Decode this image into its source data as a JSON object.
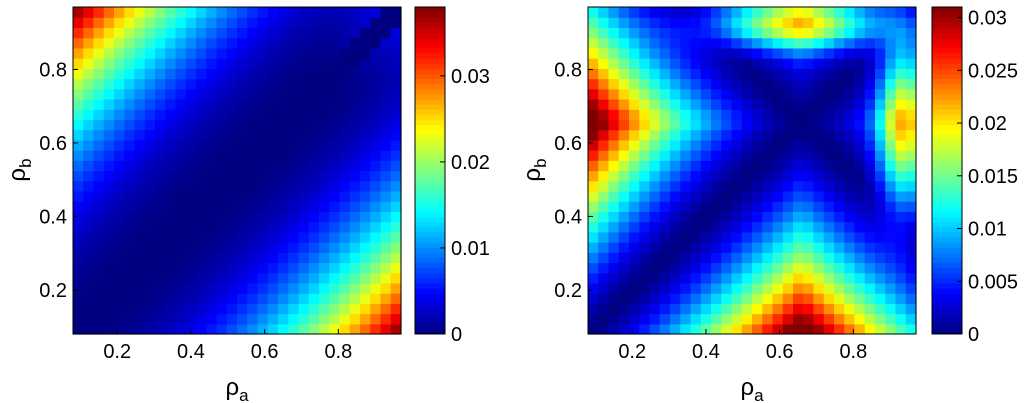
{
  "chart_data": [
    {
      "type": "heatmap",
      "title": "",
      "xlabel": "ρ",
      "xlabel_sub": "a",
      "ylabel": "ρ",
      "ylabel_sub": "b",
      "grid": false,
      "colormap": "jet",
      "xlim": [
        0.08,
        0.97
      ],
      "ylim": [
        0.08,
        0.97
      ],
      "xticks": [
        0.2,
        0.4,
        0.6,
        0.8
      ],
      "xtick_labels": [
        "0.2",
        "0.4",
        "0.6",
        "0.8"
      ],
      "yticks": [
        0.2,
        0.4,
        0.6,
        0.8
      ],
      "ytick_labels": [
        "0.2",
        "0.4",
        "0.6",
        "0.8"
      ],
      "colorbar": {
        "range": [
          0,
          0.038
        ],
        "ticks": [
          0,
          0.01,
          0.02,
          0.03
        ],
        "tick_labels": [
          "0",
          "0.01",
          "0.02",
          "0.03"
        ]
      },
      "grid_size": 32,
      "description_of_values": "Value is zero along diagonal ρa=ρb, maximum ~0.038 at (0.1,0.95) and (0.95,0.1)",
      "peaks": [
        {
          "x": 0.1,
          "y": 0.95,
          "value": 0.038
        },
        {
          "x": 0.95,
          "y": 0.1,
          "value": 0.038
        }
      ]
    },
    {
      "type": "heatmap",
      "title": "",
      "xlabel": "ρ",
      "xlabel_sub": "a",
      "ylabel": "ρ",
      "ylabel_sub": "b",
      "grid": false,
      "colormap": "jet",
      "xlim": [
        0.08,
        0.97
      ],
      "ylim": [
        0.08,
        0.97
      ],
      "xticks": [
        0.2,
        0.4,
        0.6,
        0.8
      ],
      "xtick_labels": [
        "0.2",
        "0.4",
        "0.6",
        "0.8"
      ],
      "yticks": [
        0.2,
        0.4,
        0.6,
        0.8
      ],
      "ytick_labels": [
        "0.2",
        "0.4",
        "0.6",
        "0.8"
      ],
      "colorbar": {
        "range": [
          0,
          0.031
        ],
        "ticks": [
          0,
          0.005,
          0.01,
          0.015,
          0.02,
          0.025,
          0.03
        ],
        "tick_labels": [
          "0",
          "0.005",
          "0.01",
          "0.015",
          "0.02",
          "0.025",
          "0.03"
        ]
      },
      "grid_size": 32,
      "description_of_values": "Value is zero along both diagonals ρa=ρb and ρa+ρb≈1.35, maximum ~0.031 at left edge (ρa≈0.1, ρb≈0.65) and bottom edge (ρa≈0.65, ρb≈0.1)",
      "peaks": [
        {
          "x": 0.1,
          "y": 0.65,
          "value": 0.031
        },
        {
          "x": 0.65,
          "y": 0.1,
          "value": 0.031
        }
      ]
    }
  ]
}
